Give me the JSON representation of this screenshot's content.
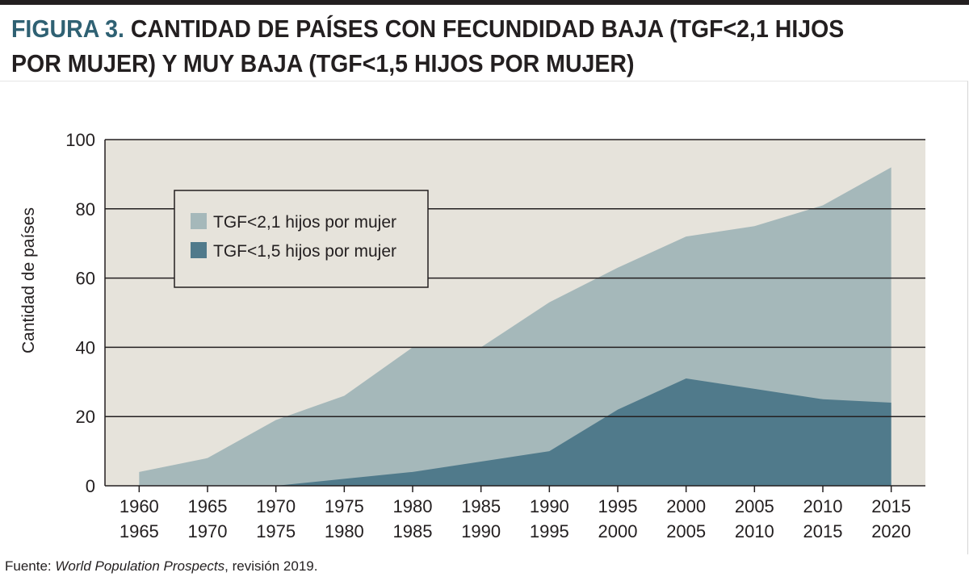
{
  "figure": {
    "title_prefix": "FIGURA 3.",
    "title_text": "CANTIDAD DE PAÍSES CON FECUNDIDAD BAJA (TGF<2,1 HIJOS POR MUJER) Y MUY BAJA (TGF<1,5 HIJOS POR MUJER)",
    "source_prefix": "Fuente: ",
    "source_title": "World Population Prospects",
    "source_suffix": ", revisión 2019."
  },
  "colors": {
    "plot_bg": "#e6e3db",
    "series_low": "#a5b8ba",
    "series_very_low": "#507a8b",
    "title_accent": "#2f6173",
    "text": "#231f20"
  },
  "chart_data": {
    "type": "area",
    "ylabel": "Cantidad de países",
    "xlabel": "",
    "ylim": [
      0,
      100
    ],
    "yticks": [
      0,
      20,
      40,
      60,
      80,
      100
    ],
    "grid": "horizontal",
    "legend_position": "top-left",
    "categories": [
      [
        "1960",
        "1965"
      ],
      [
        "1965",
        "1970"
      ],
      [
        "1970",
        "1975"
      ],
      [
        "1975",
        "1980"
      ],
      [
        "1980",
        "1985"
      ],
      [
        "1985",
        "1990"
      ],
      [
        "1990",
        "1995"
      ],
      [
        "1995",
        "2000"
      ],
      [
        "2000",
        "2005"
      ],
      [
        "2005",
        "2010"
      ],
      [
        "2010",
        "2015"
      ],
      [
        "2015",
        "2020"
      ]
    ],
    "series": [
      {
        "name": "TGF<2,1 hijos por mujer",
        "values": [
          4,
          8,
          19,
          26,
          40,
          40,
          53,
          63,
          72,
          75,
          81,
          92
        ]
      },
      {
        "name": "TGF<1,5 hijos por mujer",
        "values": [
          0,
          0,
          0,
          2,
          4,
          7,
          10,
          22,
          31,
          28,
          25,
          24
        ]
      }
    ]
  }
}
